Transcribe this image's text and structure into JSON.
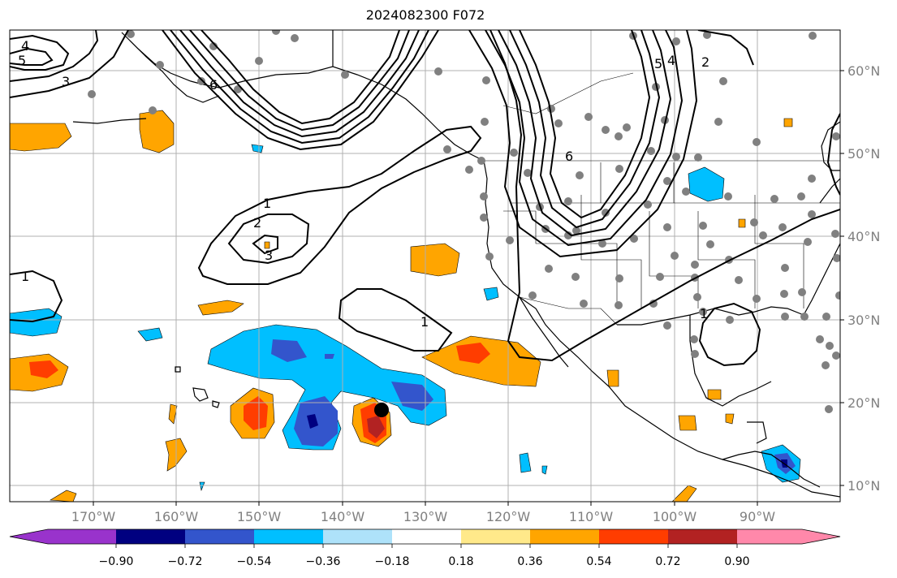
{
  "title": "2024082300 F072",
  "lat_labels": [
    "60°N",
    "50°N",
    "40°N",
    "30°N",
    "20°N",
    "10°N"
  ],
  "lon_labels": [
    "170°W",
    "160°W",
    "150°W",
    "140°W",
    "130°W",
    "120°W",
    "110°W",
    "100°W",
    "90°W"
  ],
  "colorbar": {
    "tick_labels": [
      "−0.90",
      "−0.72",
      "−0.54",
      "−0.36",
      "−0.18",
      "0.18",
      "0.36",
      "0.54",
      "0.72",
      "0.90"
    ],
    "colors": [
      "#9933cc",
      "#000080",
      "#3355cc",
      "#00bfff",
      "#aee2fa",
      "#ffffff",
      "#ffe98a",
      "#ffa500",
      "#ff3d00",
      "#b22222",
      "#ff88aa"
    ]
  },
  "contour_labels": [
    "4",
    "5",
    "3",
    "6",
    "1",
    "2",
    "3",
    "1",
    "1",
    "2",
    "4",
    "5",
    "6",
    "1"
  ],
  "colors": {
    "land_outline": "#000000",
    "grid": "#b0b0b0",
    "marker": "#808080",
    "storm": "#000000"
  }
}
